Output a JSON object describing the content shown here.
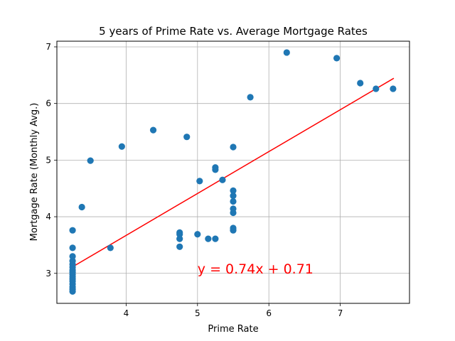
{
  "chart_data": {
    "type": "scatter",
    "title": "5 years of Prime Rate vs. Average Mortgage Rates",
    "xlabel": "Prime Rate",
    "ylabel": "Mortgage Rate (Monthly Avg.)",
    "xlim": [
      3.03,
      7.97
    ],
    "ylim": [
      2.47,
      7.1
    ],
    "xticks": [
      4,
      5,
      6,
      7
    ],
    "yticks": [
      3,
      4,
      5,
      6,
      7
    ],
    "grid": true,
    "point_color": "#1f77b4",
    "points": [
      [
        3.25,
        2.68
      ],
      [
        3.25,
        2.72
      ],
      [
        3.25,
        2.76
      ],
      [
        3.25,
        2.81
      ],
      [
        3.25,
        2.86
      ],
      [
        3.25,
        2.9
      ],
      [
        3.25,
        2.94
      ],
      [
        3.25,
        2.98
      ],
      [
        3.25,
        3.02
      ],
      [
        3.25,
        3.06
      ],
      [
        3.25,
        3.11
      ],
      [
        3.25,
        3.16
      ],
      [
        3.25,
        3.22
      ],
      [
        3.25,
        3.3
      ],
      [
        3.25,
        3.45
      ],
      [
        3.25,
        3.76
      ],
      [
        3.38,
        4.17
      ],
      [
        3.5,
        4.99
      ],
      [
        3.78,
        3.45
      ],
      [
        3.94,
        5.24
      ],
      [
        4.38,
        5.53
      ],
      [
        4.75,
        3.47
      ],
      [
        4.75,
        3.61
      ],
      [
        4.75,
        3.69
      ],
      [
        4.75,
        3.72
      ],
      [
        4.85,
        5.41
      ],
      [
        5.0,
        3.69
      ],
      [
        5.03,
        4.63
      ],
      [
        5.15,
        3.61
      ],
      [
        5.25,
        3.61
      ],
      [
        5.25,
        4.83
      ],
      [
        5.25,
        4.87
      ],
      [
        5.35,
        4.65
      ],
      [
        5.5,
        3.76
      ],
      [
        5.5,
        3.8
      ],
      [
        5.5,
        4.07
      ],
      [
        5.5,
        4.14
      ],
      [
        5.5,
        4.27
      ],
      [
        5.5,
        4.37
      ],
      [
        5.5,
        4.46
      ],
      [
        5.5,
        5.23
      ],
      [
        5.74,
        6.11
      ],
      [
        6.25,
        6.9
      ],
      [
        6.95,
        6.8
      ],
      [
        7.28,
        6.36
      ],
      [
        7.5,
        6.26
      ],
      [
        7.74,
        6.26
      ]
    ],
    "regression": {
      "color": "#ff0000",
      "slope": 0.74,
      "intercept": 0.71,
      "x_range": [
        3.25,
        7.75
      ],
      "label": "y = 0.74x + 0.71",
      "label_anchor": [
        5.0,
        3.0
      ]
    }
  }
}
